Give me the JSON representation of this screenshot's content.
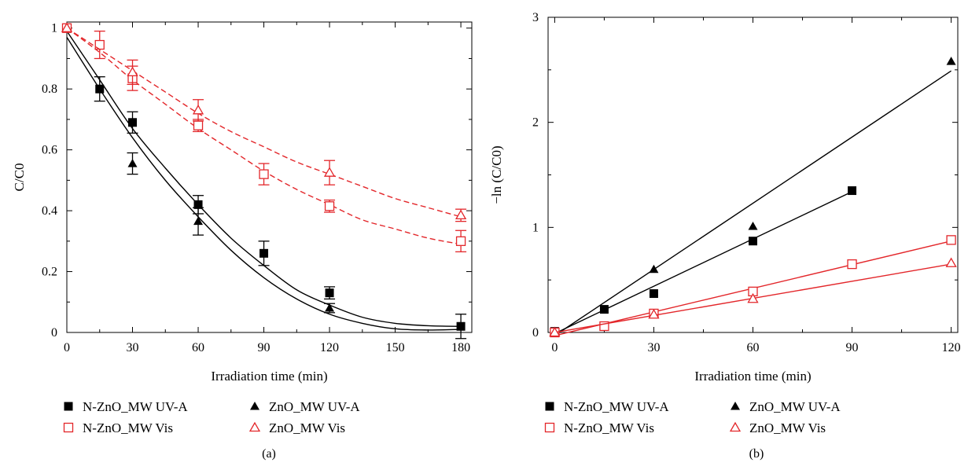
{
  "chart_data": [
    {
      "type": "scatter",
      "panel_label": "(a)",
      "xlabel": "Irradiation time (min)",
      "ylabel": "C/C0",
      "xlim": [
        0,
        185
      ],
      "ylim": [
        0,
        1.02
      ],
      "xticks": [
        0,
        30,
        60,
        90,
        120,
        150,
        180
      ],
      "yticks": [
        0,
        0.2,
        0.4,
        0.6,
        0.8,
        1
      ],
      "ytick_labels": [
        "0",
        "0.2",
        "0.4",
        "0.6",
        "0.8",
        "1"
      ],
      "grid": false,
      "legend_position": "bottom",
      "series": [
        {
          "name": "N-ZnO_MW UV-A",
          "marker": "square-filled",
          "color": "#000000",
          "x": [
            0,
            15,
            30,
            60,
            90,
            120,
            180
          ],
          "y": [
            1.0,
            0.8,
            0.69,
            0.42,
            0.26,
            0.13,
            0.02
          ],
          "err": [
            0,
            0.04,
            0.035,
            0.03,
            0.04,
            0.02,
            0.04
          ],
          "fit": {
            "style": "solid",
            "x": [
              0,
              15,
              30,
              45,
              60,
              75,
              90,
              105,
              120,
              135,
              150,
              165,
              180
            ],
            "y": [
              0.99,
              0.83,
              0.67,
              0.54,
              0.42,
              0.31,
              0.22,
              0.14,
              0.09,
              0.05,
              0.03,
              0.022,
              0.02
            ]
          }
        },
        {
          "name": "ZnO_MW UV-A",
          "marker": "triangle-filled",
          "color": "#000000",
          "x": [
            0,
            30,
            60,
            120
          ],
          "y": [
            1.0,
            0.555,
            0.365,
            0.08
          ],
          "err": [
            0,
            0.035,
            0.045,
            0.015
          ],
          "fit": {
            "style": "solid",
            "x": [
              0,
              15,
              30,
              45,
              60,
              75,
              90,
              105,
              120,
              135,
              150,
              165,
              180
            ],
            "y": [
              0.97,
              0.8,
              0.64,
              0.5,
              0.38,
              0.27,
              0.18,
              0.11,
              0.06,
              0.03,
              0.012,
              0.008,
              0.01
            ]
          }
        },
        {
          "name": "N-ZnO_MW Vis",
          "marker": "square-open",
          "color": "#e3262a",
          "x": [
            0,
            15,
            30,
            60,
            90,
            120,
            180
          ],
          "y": [
            1.0,
            0.945,
            0.835,
            0.68,
            0.52,
            0.415,
            0.3
          ],
          "err": [
            0,
            0.045,
            0.04,
            0.02,
            0.035,
            0.02,
            0.035
          ],
          "fit": {
            "style": "dashed",
            "x": [
              0,
              15,
              30,
              45,
              60,
              75,
              90,
              105,
              120,
              135,
              150,
              165,
              180
            ],
            "y": [
              1.0,
              0.92,
              0.83,
              0.75,
              0.67,
              0.6,
              0.53,
              0.47,
              0.42,
              0.37,
              0.34,
              0.31,
              0.29
            ]
          }
        },
        {
          "name": "ZnO_MW Vis",
          "marker": "triangle-open",
          "color": "#e3262a",
          "x": [
            0,
            30,
            60,
            120,
            180
          ],
          "y": [
            1.0,
            0.855,
            0.73,
            0.525,
            0.385
          ],
          "err": [
            0,
            0.04,
            0.035,
            0.04,
            0.02
          ],
          "fit": {
            "style": "dashed",
            "x": [
              0,
              15,
              30,
              45,
              60,
              75,
              90,
              105,
              120,
              135,
              150,
              165,
              180
            ],
            "y": [
              1.0,
              0.93,
              0.86,
              0.79,
              0.72,
              0.66,
              0.61,
              0.56,
              0.52,
              0.48,
              0.44,
              0.41,
              0.38
            ]
          }
        }
      ]
    },
    {
      "type": "scatter",
      "panel_label": "(b)",
      "xlabel": "Irradiation time (min)",
      "ylabel": "−ln (C/C0)",
      "xlim": [
        -2,
        122
      ],
      "ylim": [
        0,
        3
      ],
      "xticks": [
        0,
        30,
        60,
        90,
        120
      ],
      "yticks": [
        0,
        1,
        2,
        3
      ],
      "ytick_labels": [
        "0",
        "1",
        "2",
        "3"
      ],
      "grid": false,
      "legend_position": "bottom",
      "series": [
        {
          "name": "N-ZnO_MW UV-A",
          "marker": "square-filled",
          "color": "#000000",
          "x": [
            0,
            15,
            30,
            60,
            90
          ],
          "y": [
            0.01,
            0.22,
            0.37,
            0.87,
            1.35
          ],
          "fit": {
            "style": "solid",
            "x": [
              0,
              90
            ],
            "y": [
              -0.01,
              1.34
            ]
          }
        },
        {
          "name": "ZnO_MW UV-A",
          "marker": "triangle-filled",
          "color": "#000000",
          "x": [
            0,
            30,
            60,
            120
          ],
          "y": [
            0.01,
            0.6,
            1.01,
            2.58
          ],
          "fit": {
            "style": "solid",
            "x": [
              0,
              120
            ],
            "y": [
              -0.03,
              2.49
            ]
          }
        },
        {
          "name": "N-ZnO_MW Vis",
          "marker": "square-open",
          "color": "#e3262a",
          "x": [
            0,
            15,
            30,
            60,
            90,
            120
          ],
          "y": [
            0.0,
            0.06,
            0.18,
            0.39,
            0.65,
            0.88
          ],
          "fit": {
            "style": "solid",
            "x": [
              0,
              120
            ],
            "y": [
              -0.03,
              0.87
            ]
          }
        },
        {
          "name": "ZnO_MW Vis",
          "marker": "triangle-open",
          "color": "#e3262a",
          "x": [
            0,
            30,
            60,
            120
          ],
          "y": [
            0.0,
            0.17,
            0.32,
            0.66
          ],
          "fit": {
            "style": "solid",
            "x": [
              0,
              120
            ],
            "y": [
              0.0,
              0.65
            ]
          }
        }
      ]
    }
  ]
}
